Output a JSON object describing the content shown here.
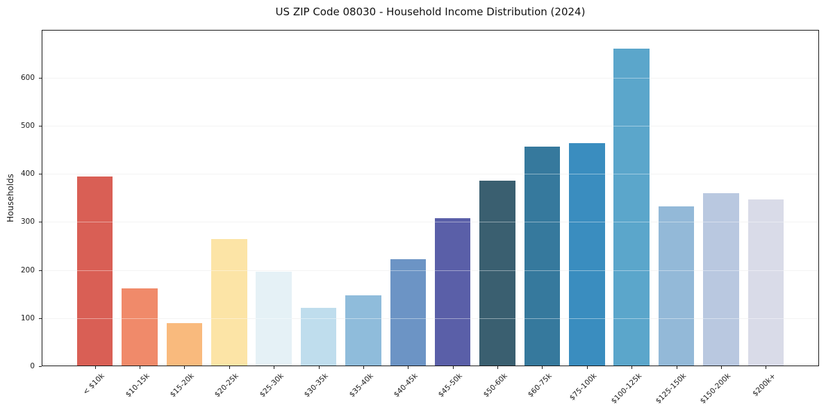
{
  "chart_data": {
    "type": "bar",
    "title": "US ZIP Code 08030 - Household Income Distribution (2024)",
    "xlabel": "",
    "ylabel": "Households",
    "categories": [
      "< $10k",
      "$10-15k",
      "$15-20k",
      "$20-25k",
      "$25-30k",
      "$30-35k",
      "$35-40k",
      "$40-45k",
      "$45-50k",
      "$50-60k",
      "$60-75k",
      "$75-100k",
      "$100-125k",
      "$125-150k",
      "$150-200k",
      "$200k+"
    ],
    "values": [
      395,
      162,
      89,
      264,
      197,
      121,
      147,
      222,
      307,
      386,
      457,
      463,
      660,
      332,
      360,
      347
    ],
    "bar_colors": [
      "#d95f55",
      "#f08a6a",
      "#f9ba7d",
      "#fce4a6",
      "#e5f1f6",
      "#bfdded",
      "#8fbcdb",
      "#6c94c5",
      "#5a5fa8",
      "#3a5f70",
      "#36799d",
      "#3a8dbf",
      "#5ba6cb",
      "#93b9d8",
      "#b9c8e0",
      "#d9dbe8"
    ],
    "yticks": [
      0,
      100,
      200,
      300,
      400,
      500,
      600
    ],
    "ylim": [
      0,
      699
    ],
    "grid": "horizontal",
    "grid_color": "#ebebeb",
    "spine_color": "#1a1a1a",
    "background_color": "#ffffff",
    "xtick_rotation_deg": 45,
    "legend": "none"
  }
}
